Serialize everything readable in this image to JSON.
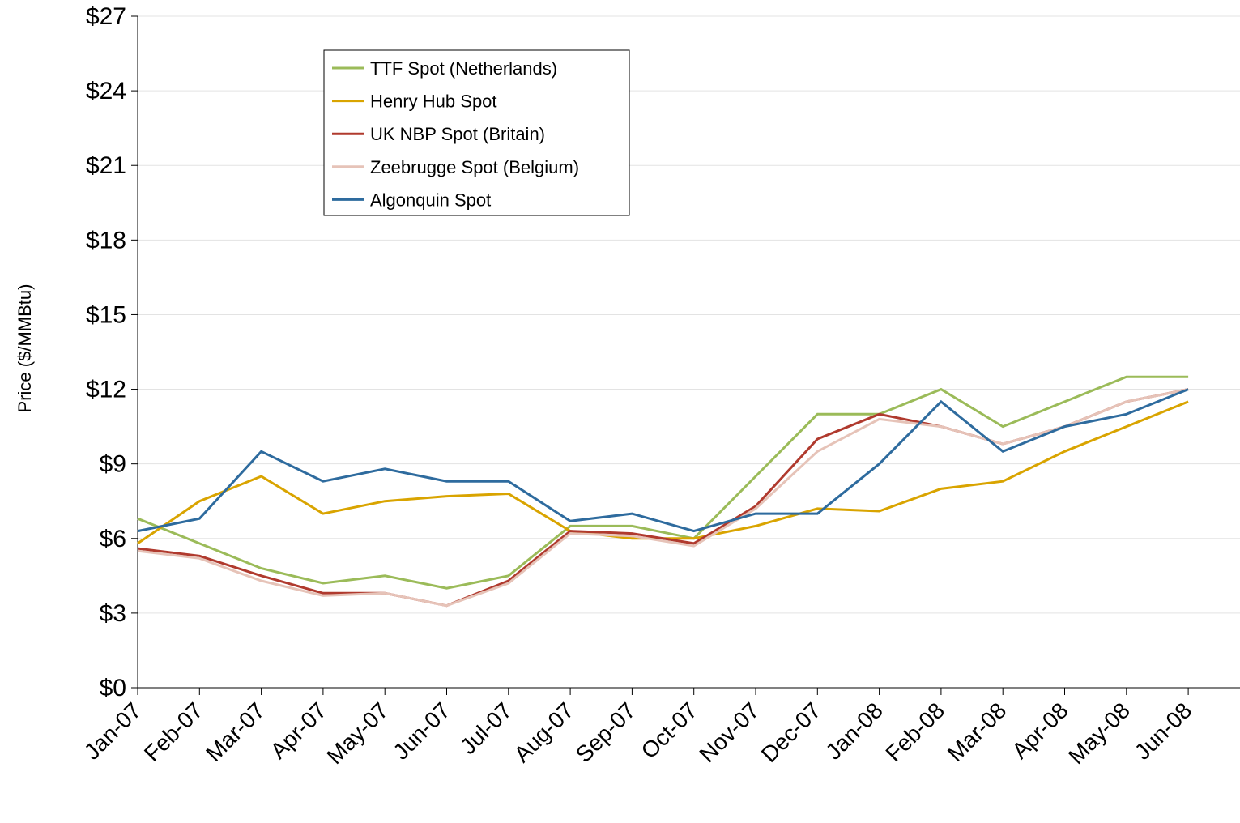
{
  "chart_data": {
    "type": "line",
    "y_label": "Price ($/MMBtu)",
    "x": [
      "Jan-07",
      "Feb-07",
      "Mar-07",
      "Apr-07",
      "May-07",
      "Jun-07",
      "Jul-07",
      "Aug-07",
      "Sep-07",
      "Oct-07",
      "Nov-07",
      "Dec-07",
      "Jan-08",
      "Feb-08",
      "Mar-08",
      "Apr-08",
      "May-08",
      "Jun-08"
    ],
    "ylim": [
      0,
      27
    ],
    "yticks": [
      {
        "value": 0,
        "label": "$0"
      },
      {
        "value": 3,
        "label": "$3"
      },
      {
        "value": 6,
        "label": "$6"
      },
      {
        "value": 9,
        "label": "$9"
      },
      {
        "value": 12,
        "label": "$12"
      },
      {
        "value": 15,
        "label": "$15"
      },
      {
        "value": 18,
        "label": "$18"
      },
      {
        "value": 21,
        "label": "$21"
      },
      {
        "value": 24,
        "label": "$24"
      },
      {
        "value": 27,
        "label": "$27"
      }
    ],
    "grid": true,
    "legend": "top-left",
    "series": [
      {
        "name": "TTF Spot (Netherlands)",
        "color": "#9bbb59",
        "values": [
          6.8,
          5.8,
          4.8,
          4.2,
          4.5,
          4.0,
          4.5,
          6.5,
          6.5,
          6.0,
          8.5,
          11,
          11,
          12,
          10.5,
          11.5,
          12.5,
          12.5
        ]
      },
      {
        "name": "Henry Hub Spot",
        "color": "#d9a400",
        "values": [
          5.8,
          7.5,
          8.5,
          7,
          7.5,
          7.7,
          7.8,
          6.3,
          6,
          6,
          6.5,
          7.2,
          7.1,
          8,
          8.3,
          9.5,
          10.5,
          11.5
        ]
      },
      {
        "name": "UK NBP Spot (Britain)",
        "color": "#b03a2e",
        "values": [
          5.6,
          5.3,
          4.5,
          3.8,
          3.8,
          3.3,
          4.3,
          6.3,
          6.2,
          5.8,
          7.3,
          10,
          11,
          10.5,
          9.8,
          10.5,
          11.5,
          12
        ]
      },
      {
        "name": "Zeebrugge Spot (Belgium)",
        "color": "#e6c3b8",
        "values": [
          5.5,
          5.2,
          4.3,
          3.7,
          3.8,
          3.3,
          4.2,
          6.2,
          6.1,
          5.7,
          7.2,
          9.5,
          10.8,
          10.5,
          9.8,
          10.5,
          11.5,
          12
        ]
      },
      {
        "name": "Algonquin Spot",
        "color": "#2e6b9e",
        "values": [
          6.3,
          6.8,
          9.5,
          8.3,
          8.8,
          8.3,
          8.3,
          6.7,
          7,
          6.3,
          7,
          7,
          9,
          11.5,
          9.5,
          10.5,
          11,
          12
        ]
      }
    ]
  }
}
